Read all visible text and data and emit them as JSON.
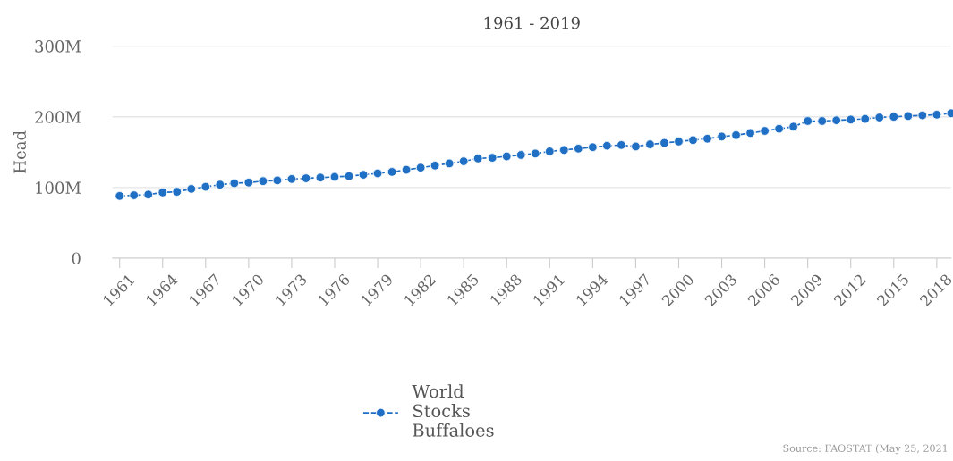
{
  "chart_data": {
    "type": "line",
    "title": "1961 - 2019",
    "ylabel": "Head",
    "x": [
      1961,
      1962,
      1963,
      1964,
      1965,
      1966,
      1967,
      1968,
      1969,
      1970,
      1971,
      1972,
      1973,
      1974,
      1975,
      1976,
      1977,
      1978,
      1979,
      1980,
      1981,
      1982,
      1983,
      1984,
      1985,
      1986,
      1987,
      1988,
      1989,
      1990,
      1991,
      1992,
      1993,
      1994,
      1995,
      1996,
      1997,
      1998,
      1999,
      2000,
      2001,
      2002,
      2003,
      2004,
      2005,
      2006,
      2007,
      2008,
      2009,
      2010,
      2011,
      2012,
      2013,
      2014,
      2015,
      2016,
      2017,
      2018,
      2019
    ],
    "series": [
      {
        "name": "World Stocks Buffaloes",
        "color": "#1f6fc5",
        "values": [
          88,
          89,
          90,
          93,
          94,
          98,
          101,
          104,
          106,
          107,
          109,
          110,
          112,
          113,
          114,
          115,
          116,
          118,
          120,
          122,
          125,
          128,
          131,
          134,
          137,
          141,
          142,
          144,
          146,
          148,
          151,
          153,
          155,
          157,
          159,
          160,
          158,
          161,
          163,
          165,
          167,
          169,
          172,
          174,
          177,
          180,
          183,
          186,
          194,
          194,
          195,
          196,
          197,
          199,
          200,
          201,
          202,
          203,
          205
        ]
      }
    ],
    "xlim": [
      1960.5,
      2019
    ],
    "xticks": [
      1961,
      1964,
      1967,
      1970,
      1973,
      1976,
      1979,
      1982,
      1985,
      1988,
      1991,
      1994,
      1997,
      2000,
      2003,
      2006,
      2009,
      2012,
      2015,
      2018
    ],
    "ylim": [
      0,
      300
    ],
    "yticks": [
      0,
      {
        "value": 100,
        "label": "100M"
      },
      {
        "value": 200,
        "label": "200M"
      },
      {
        "value": 300,
        "label": "300M"
      }
    ],
    "grid": "y",
    "legend": "bottom",
    "marker": "circle",
    "line_style": "dashed",
    "annotations": [
      "Source: FAOSTAT (May 25, 2021"
    ]
  }
}
